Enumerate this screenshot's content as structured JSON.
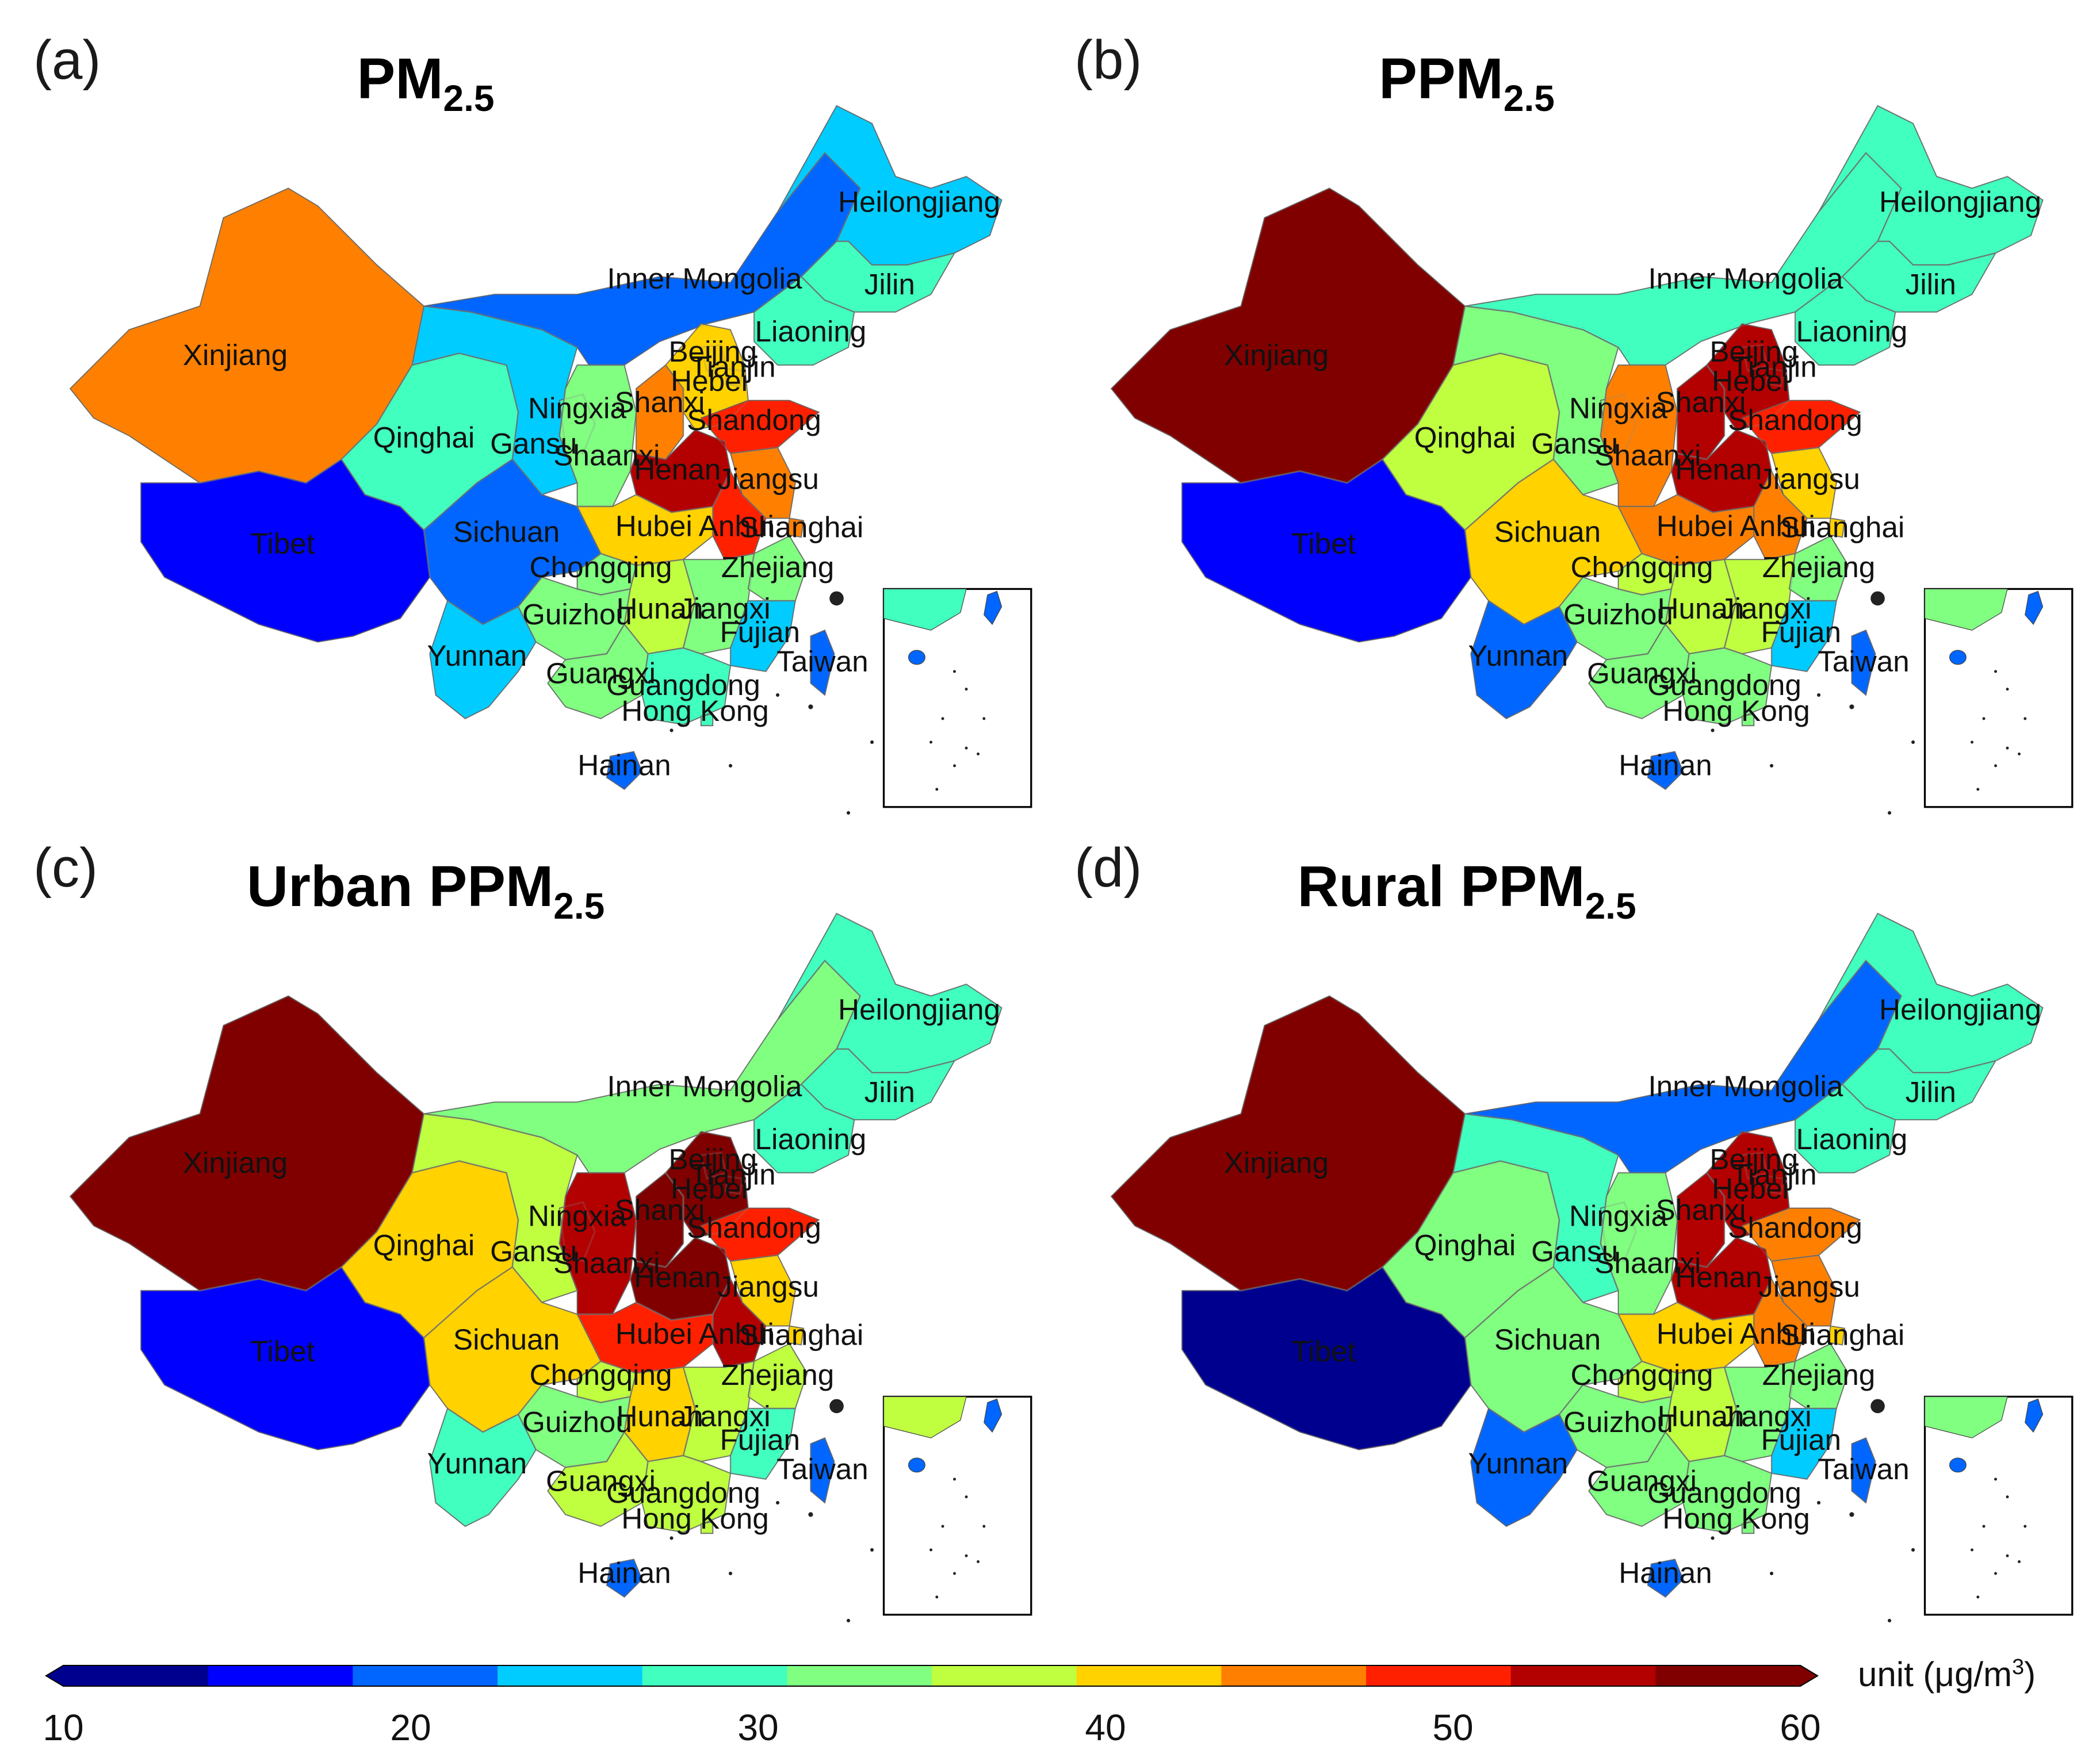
{
  "panels": [
    {
      "letter": "(a)",
      "title_main": "PM",
      "title_sub": "2.5",
      "values": {
        "Xinjiang": 47,
        "Tibet": 18,
        "Qinghai": 28,
        "Gansu": 23,
        "Inner Mongolia": 22,
        "Heilongjiang": 23,
        "Jilin": 28,
        "Liaoning": 28,
        "Ningxia": 29,
        "Shaanxi": 34,
        "Shanxi": 47,
        "Beijing": 42,
        "Tianjin": 42,
        "Hebei": 42,
        "Shandong": 48,
        "Henan": 52,
        "Jiangsu": 47,
        "Anhui": 48,
        "Shanghai": 47,
        "Hubei": 42,
        "Sichuan": 22,
        "Chongqing": 33,
        "Hunan": 36,
        "Jiangxi": 34,
        "Zhejiang": 34,
        "Fujian": 23,
        "Guizhou": 33,
        "Yunnan": 23,
        "Guangxi": 32,
        "Guangdong": 29,
        "Hong Kong": 29,
        "Taiwan": 19,
        "Hainan": 19
      }
    },
    {
      "letter": "(b)",
      "title_main": "PPM",
      "title_sub": "2.5",
      "values": {
        "Xinjiang": 58,
        "Tibet": 18,
        "Qinghai": 38,
        "Gansu": 32,
        "Inner Mongolia": 28,
        "Heilongjiang": 28,
        "Jilin": 28,
        "Liaoning": 28,
        "Ningxia": 32,
        "Shaanxi": 47,
        "Shanxi": 52,
        "Beijing": 52,
        "Tianjin": 52,
        "Hebei": 52,
        "Shandong": 48,
        "Henan": 52,
        "Jiangsu": 43,
        "Anhui": 47,
        "Shanghai": 43,
        "Hubei": 47,
        "Sichuan": 42,
        "Chongqing": 38,
        "Hunan": 36,
        "Jiangxi": 36,
        "Zhejiang": 33,
        "Fujian": 23,
        "Guizhou": 33,
        "Yunnan": 22,
        "Guangxi": 32,
        "Guangdong": 32,
        "Hong Kong": 32,
        "Taiwan": 19,
        "Hainan": 19
      }
    },
    {
      "letter": "(c)",
      "title_main": "Urban PPM",
      "title_sub": "2.5",
      "values": {
        "Xinjiang": 58,
        "Tibet": 18,
        "Qinghai": 43,
        "Gansu": 38,
        "Inner Mongolia": 32,
        "Heilongjiang": 28,
        "Jilin": 28,
        "Liaoning": 28,
        "Ningxia": 38,
        "Shaanxi": 53,
        "Shanxi": 58,
        "Beijing": 58,
        "Tianjin": 58,
        "Hebei": 58,
        "Shandong": 48,
        "Henan": 58,
        "Jiangsu": 43,
        "Anhui": 53,
        "Shanghai": 43,
        "Hubei": 48,
        "Sichuan": 43,
        "Chongqing": 38,
        "Hunan": 43,
        "Jiangxi": 38,
        "Zhejiang": 38,
        "Fujian": 28,
        "Guizhou": 33,
        "Yunnan": 28,
        "Guangxi": 38,
        "Guangdong": 38,
        "Hong Kong": 38,
        "Taiwan": 19,
        "Hainan": 19
      }
    },
    {
      "letter": "(d)",
      "title_main": "Rural PPM",
      "title_sub": "2.5",
      "values": {
        "Xinjiang": 58,
        "Tibet": 13,
        "Qinghai": 33,
        "Gansu": 28,
        "Inner Mongolia": 22,
        "Heilongjiang": 28,
        "Jilin": 28,
        "Liaoning": 28,
        "Ningxia": 28,
        "Shaanxi": 33,
        "Shanxi": 52,
        "Beijing": 52,
        "Tianjin": 52,
        "Hebei": 52,
        "Shandong": 47,
        "Henan": 52,
        "Jiangsu": 47,
        "Anhui": 47,
        "Shanghai": 42,
        "Hubei": 42,
        "Sichuan": 33,
        "Chongqing": 38,
        "Hunan": 36,
        "Jiangxi": 33,
        "Zhejiang": 33,
        "Fujian": 23,
        "Guizhou": 33,
        "Yunnan": 22,
        "Guangxi": 32,
        "Guangdong": 32,
        "Hong Kong": 32,
        "Taiwan": 19,
        "Hainan": 19
      }
    }
  ],
  "colorbar": {
    "min": 10,
    "max": 60,
    "ticks": [
      "10",
      "20",
      "30",
      "40",
      "50",
      "60"
    ],
    "colors": [
      "#00008f",
      "#0000ff",
      "#0066ff",
      "#00ccff",
      "#40ffbf",
      "#80ff80",
      "#bfff40",
      "#ffd200",
      "#ff8000",
      "#ff2000",
      "#b30000",
      "#800000"
    ],
    "unit_label": "unit (μg/m",
    "unit_sup": "3",
    "unit_close": ")"
  }
}
